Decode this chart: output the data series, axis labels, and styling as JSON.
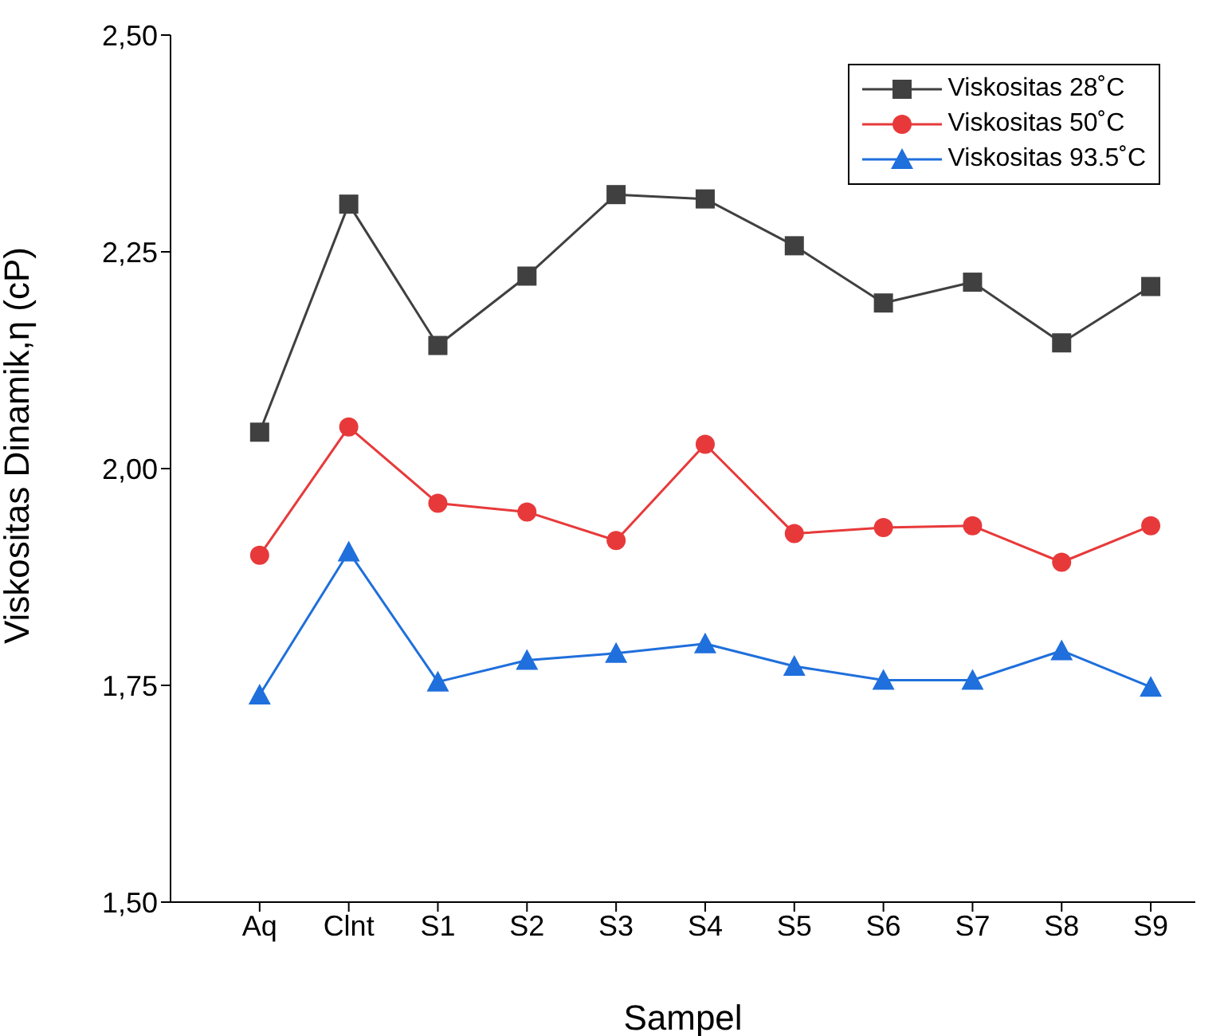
{
  "chart_data": {
    "type": "line",
    "xlabel": "Sampel",
    "ylabel": "Viskositas Dinamik,η (cP)",
    "categories": [
      "Aq",
      "Clnt",
      "S1",
      "S2",
      "S3",
      "S4",
      "S5",
      "S6",
      "S7",
      "S8",
      "S9"
    ],
    "series": [
      {
        "name": "Viskositas 28˚C",
        "color": "#404040",
        "marker": "square",
        "values": [
          2.042,
          2.305,
          2.142,
          2.222,
          2.316,
          2.311,
          2.257,
          2.191,
          2.215,
          2.145,
          2.21
        ]
      },
      {
        "name": "Viskositas 50˚C",
        "color": "#e8393a",
        "marker": "circle",
        "values": [
          1.9,
          2.048,
          1.96,
          1.95,
          1.917,
          2.028,
          1.925,
          1.932,
          1.934,
          1.892,
          1.934
        ]
      },
      {
        "name": "Viskositas 93.5˚C",
        "color": "#1f6fdc",
        "marker": "triangle",
        "values": [
          1.739,
          1.904,
          1.754,
          1.779,
          1.787,
          1.798,
          1.772,
          1.756,
          1.756,
          1.79,
          1.748
        ]
      }
    ],
    "ylim": [
      1.5,
      2.5
    ],
    "yticks": [
      {
        "value": 1.5,
        "label": "1,50"
      },
      {
        "value": 1.75,
        "label": "1,75"
      },
      {
        "value": 2.0,
        "label": "2,00"
      },
      {
        "value": 2.25,
        "label": "2,25"
      },
      {
        "value": 2.5,
        "label": "2,50"
      }
    ],
    "grid": false,
    "legend": "top right",
    "line_style": "solid"
  }
}
